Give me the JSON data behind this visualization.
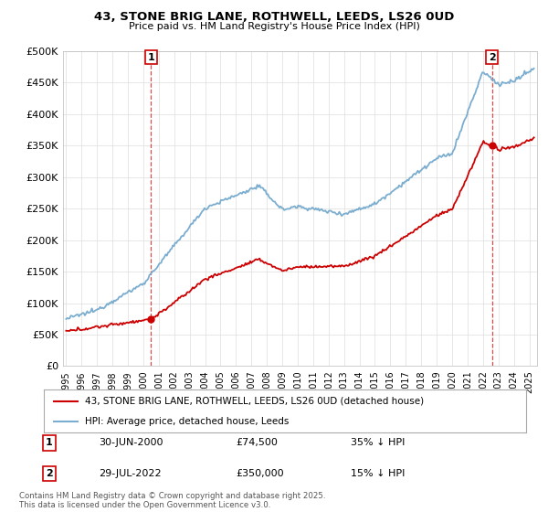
{
  "title": "43, STONE BRIG LANE, ROTHWELL, LEEDS, LS26 0UD",
  "subtitle": "Price paid vs. HM Land Registry's House Price Index (HPI)",
  "ylim": [
    0,
    500000
  ],
  "yticks": [
    0,
    50000,
    100000,
    150000,
    200000,
    250000,
    300000,
    350000,
    400000,
    450000,
    500000
  ],
  "ytick_labels": [
    "£0",
    "£50K",
    "£100K",
    "£150K",
    "£200K",
    "£250K",
    "£300K",
    "£350K",
    "£400K",
    "£450K",
    "£500K"
  ],
  "background_color": "#ffffff",
  "grid_color": "#dddddd",
  "sale1_date": "30-JUN-2000",
  "sale1_price": 74500,
  "sale1_pct": "35% ↓ HPI",
  "sale2_date": "29-JUL-2022",
  "sale2_price": 350000,
  "sale2_pct": "15% ↓ HPI",
  "legend_line1": "43, STONE BRIG LANE, ROTHWELL, LEEDS, LS26 0UD (detached house)",
  "legend_line2": "HPI: Average price, detached house, Leeds",
  "footer": "Contains HM Land Registry data © Crown copyright and database right 2025.\nThis data is licensed under the Open Government Licence v3.0.",
  "red_color": "#cc0000",
  "blue_color": "#7aadcf",
  "marker1_x": 2000.5,
  "marker2_x": 2022.58,
  "xmin": 1994.8,
  "xmax": 2025.5,
  "xticks": [
    1995,
    1996,
    1997,
    1998,
    1999,
    2000,
    2001,
    2002,
    2003,
    2004,
    2005,
    2006,
    2007,
    2008,
    2009,
    2010,
    2011,
    2012,
    2013,
    2014,
    2015,
    2016,
    2017,
    2018,
    2019,
    2020,
    2021,
    2022,
    2023,
    2024,
    2025
  ]
}
